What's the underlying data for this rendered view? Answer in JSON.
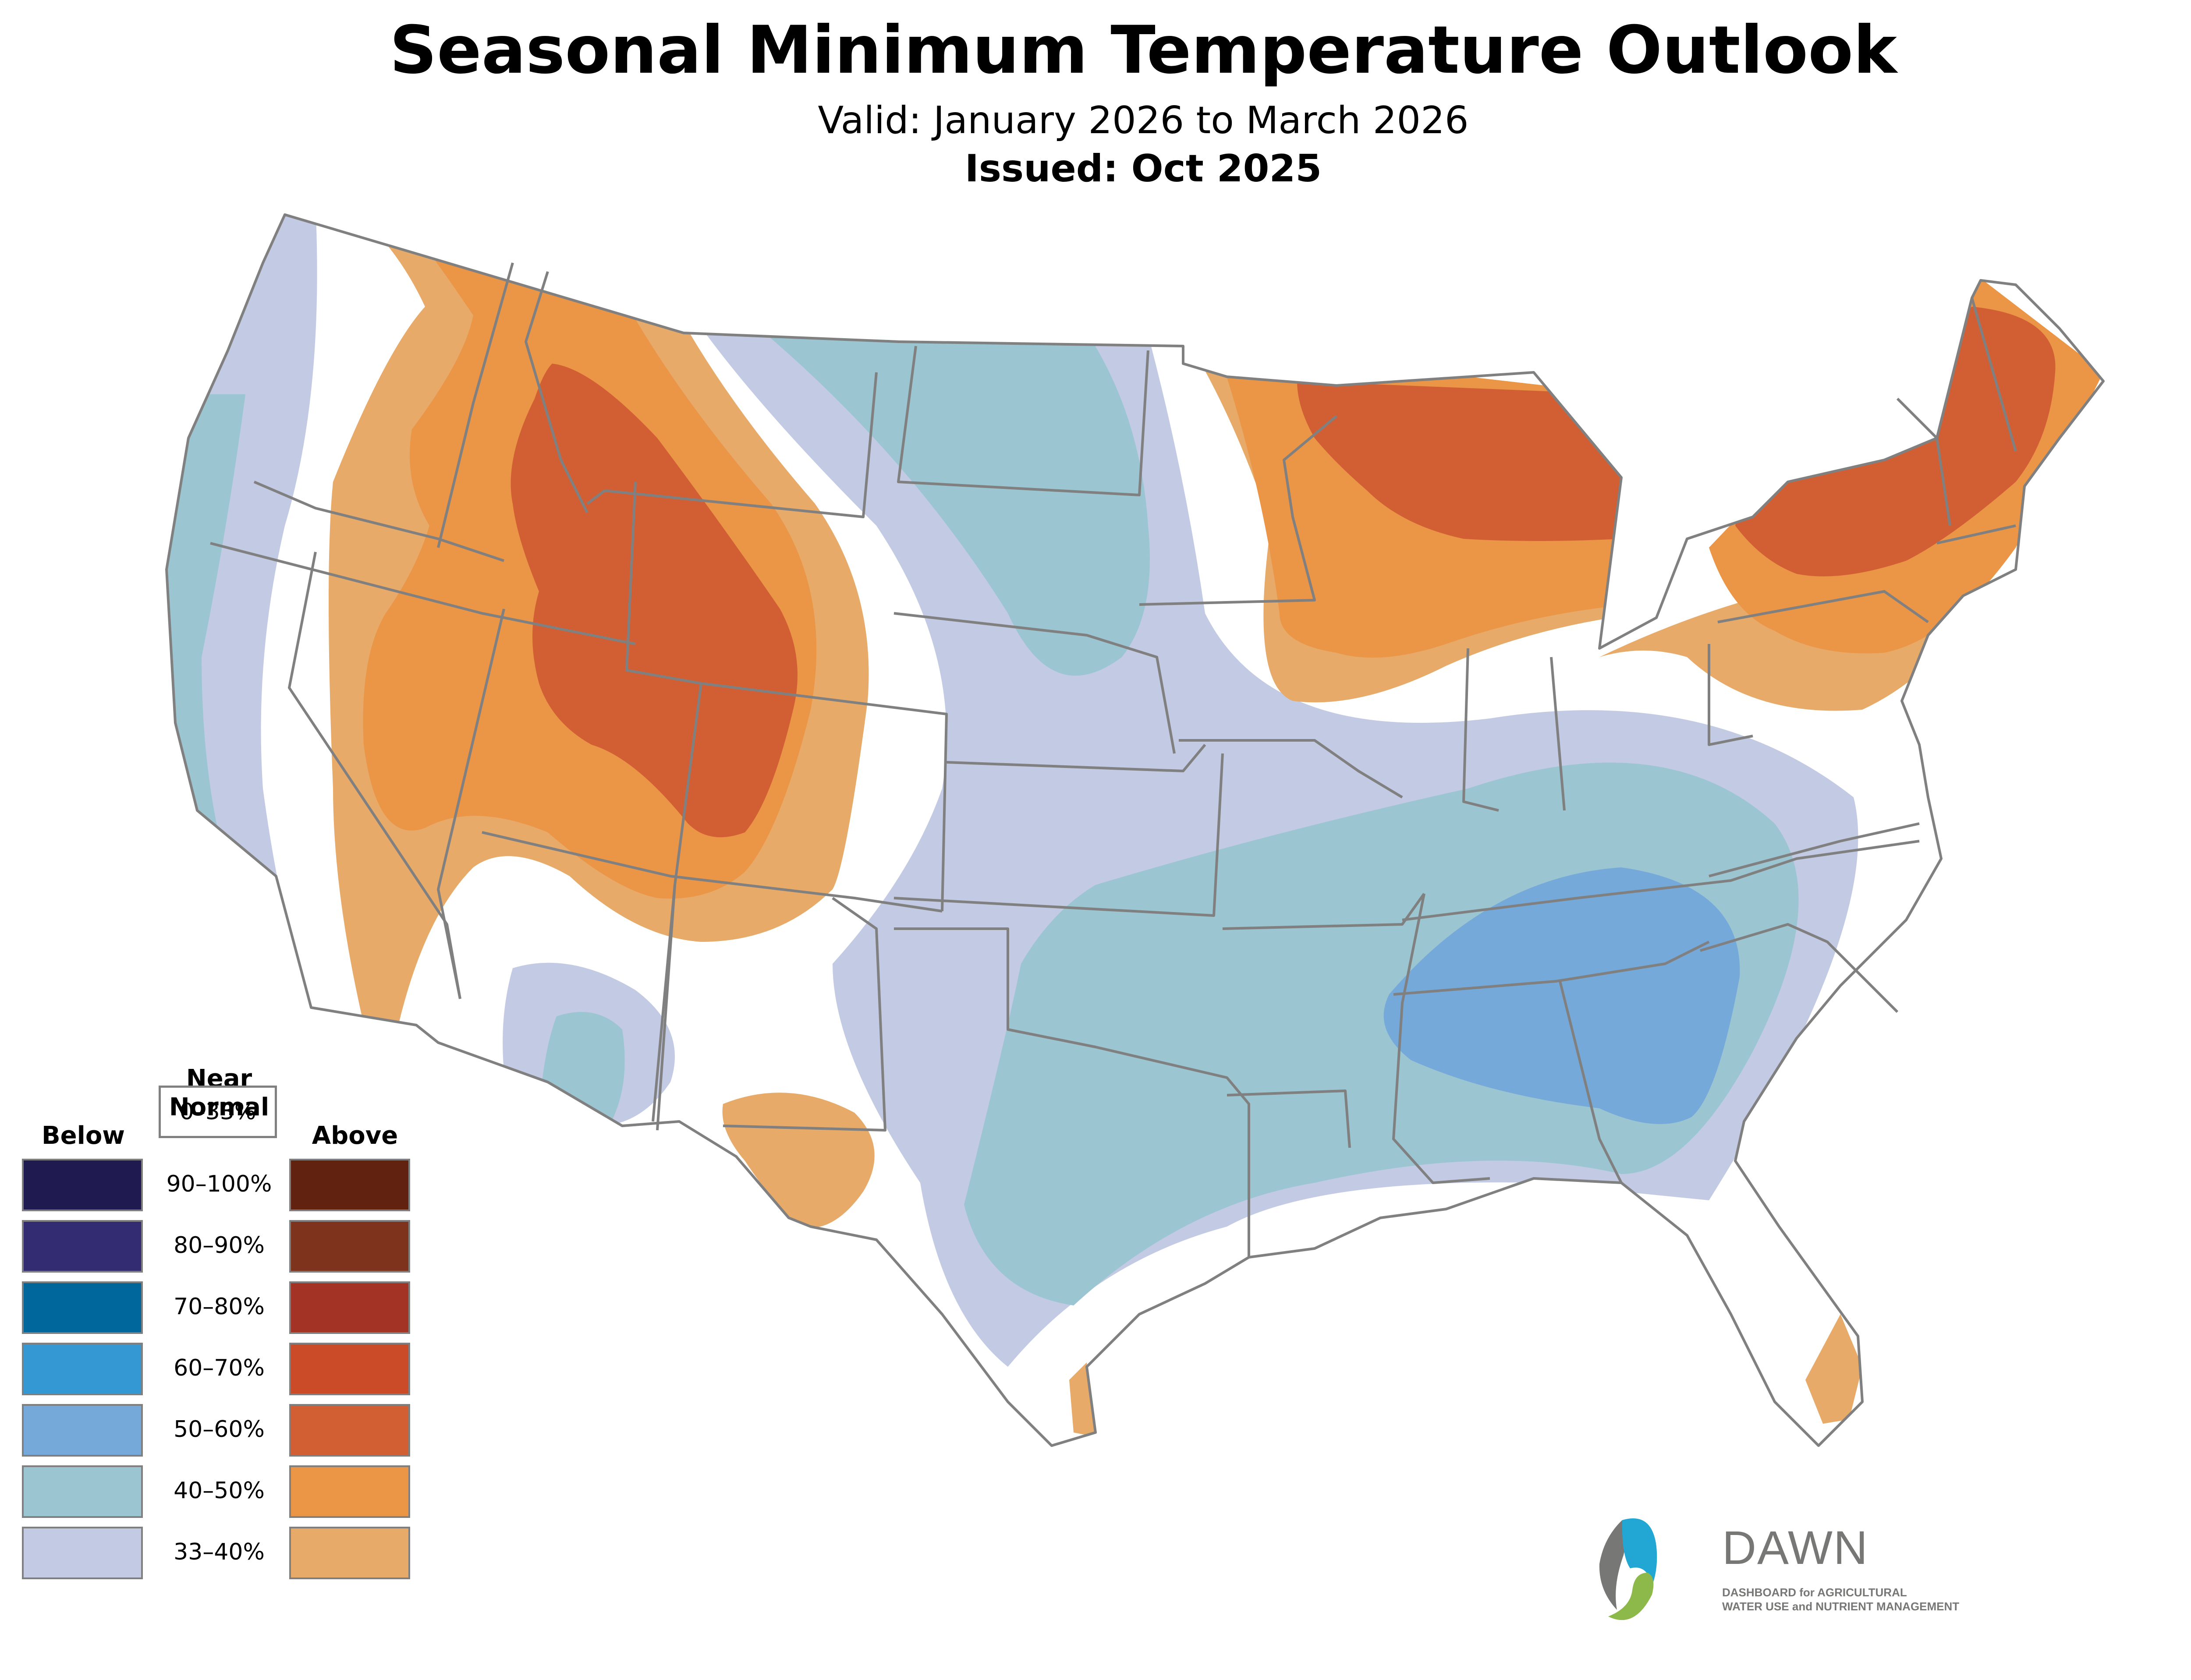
{
  "header": {
    "title": "Seasonal Minimum Temperature Outlook",
    "valid": "Valid: January 2026 to March 2026",
    "issued": "Issued: Oct 2025"
  },
  "legend": {
    "below_label": "Below",
    "near_normal_label_line1": "Near",
    "near_normal_label_line2": "Normal",
    "above_label": "Above",
    "near_normal_range": "0–33%",
    "categories": [
      {
        "range": "90–100%",
        "below_color": "#1f1a4f",
        "above_color": "#612310"
      },
      {
        "range": "80–90%",
        "below_color": "#332c73",
        "above_color": "#7e341c"
      },
      {
        "range": "70–80%",
        "below_color": "#00679d",
        "above_color": "#a33324"
      },
      {
        "range": "60–70%",
        "below_color": "#3498d3",
        "above_color": "#cb4b28"
      },
      {
        "range": "50–60%",
        "below_color": "#75a9da",
        "above_color": "#d25f33"
      },
      {
        "range": "40–50%",
        "below_color": "#9bc5d1",
        "above_color": "#eb9547"
      },
      {
        "range": "33–40%",
        "below_color": "#c3cae3",
        "above_color": "#e7aa69"
      }
    ]
  },
  "map": {
    "border_color": "#808080",
    "regions": [
      {
        "name": "west-coast-below-33-40",
        "category": "below",
        "range": "33–40%"
      },
      {
        "name": "california-coast-below-40-50",
        "category": "below",
        "range": "40–50%"
      },
      {
        "name": "interior-west-above-33-40",
        "category": "above",
        "range": "33–40%"
      },
      {
        "name": "interior-west-above-40-50",
        "category": "above",
        "range": "40–50%"
      },
      {
        "name": "rockies-above-50-60",
        "category": "above",
        "range": "50–60%"
      },
      {
        "name": "plains-below-33-40",
        "category": "below",
        "range": "33–40%"
      },
      {
        "name": "northern-plains-below-40-50",
        "category": "below",
        "range": "40–50%"
      },
      {
        "name": "south-central-below-40-50",
        "category": "below",
        "range": "40–50%"
      },
      {
        "name": "southeast-below-50-60",
        "category": "below",
        "range": "50–60%"
      },
      {
        "name": "great-lakes-above-33-40",
        "category": "above",
        "range": "33–40%"
      },
      {
        "name": "great-lakes-above-40-50",
        "category": "above",
        "range": "40–50%"
      },
      {
        "name": "upper-midwest-above-50-60",
        "category": "above",
        "range": "50–60%"
      },
      {
        "name": "northeast-above-33-40",
        "category": "above",
        "range": "33–40%"
      },
      {
        "name": "northeast-above-40-50",
        "category": "above",
        "range": "40–50%"
      },
      {
        "name": "new-england-above-50-60",
        "category": "above",
        "range": "50–60%"
      },
      {
        "name": "southwest-below-33-40",
        "category": "below",
        "range": "33–40%"
      },
      {
        "name": "southwest-below-40-50",
        "category": "below",
        "range": "40–50%"
      },
      {
        "name": "west-texas-above-33-40",
        "category": "above",
        "range": "33–40%"
      },
      {
        "name": "gulf-coast-above-33-40",
        "category": "above",
        "range": "33–40%"
      },
      {
        "name": "florida-above-33-40",
        "category": "above",
        "range": "33–40%"
      }
    ]
  },
  "logo": {
    "word": "DAWN",
    "line1": "DASHBOARD for AGRICULTURAL",
    "line2": "WATER USE and NUTRIENT MANAGEMENT",
    "blue": "#22a6d4",
    "green": "#8db84a",
    "gray": "#777776"
  }
}
